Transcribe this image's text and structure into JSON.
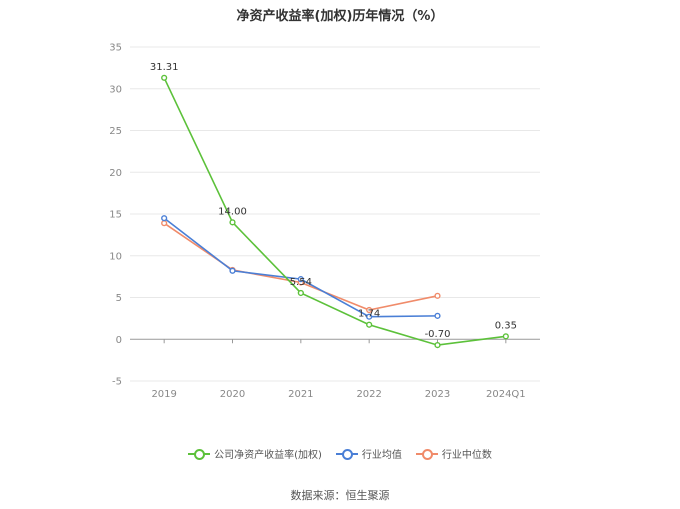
{
  "title": "净资产收益率(加权)历年情况（%）",
  "source": "数据来源：恒生聚源",
  "chart_data": {
    "type": "line",
    "title": "净资产收益率(加权)历年情况（%）",
    "categories": [
      "2019",
      "2020",
      "2021",
      "2022",
      "2023",
      "2024Q1"
    ],
    "ylim": [
      -5,
      35
    ],
    "yticks": [
      -5,
      0,
      5,
      10,
      15,
      20,
      25,
      30,
      35
    ],
    "grid": true,
    "legend_position": "bottom",
    "series": [
      {
        "name": "公司净资产收益率(加权)",
        "color": "#5cc13a",
        "values": [
          31.31,
          14.0,
          5.54,
          1.74,
          -0.7,
          0.35
        ],
        "labels": [
          "31.31",
          "14.00",
          "5.54",
          "1.74",
          "-0.70",
          "0.35"
        ]
      },
      {
        "name": "行业均值",
        "color": "#4a7fd6",
        "values": [
          14.5,
          8.2,
          7.2,
          2.7,
          2.8,
          null
        ]
      },
      {
        "name": "行业中位数",
        "color": "#f08b6a",
        "values": [
          13.9,
          8.3,
          6.8,
          3.5,
          5.2,
          null
        ]
      }
    ]
  }
}
